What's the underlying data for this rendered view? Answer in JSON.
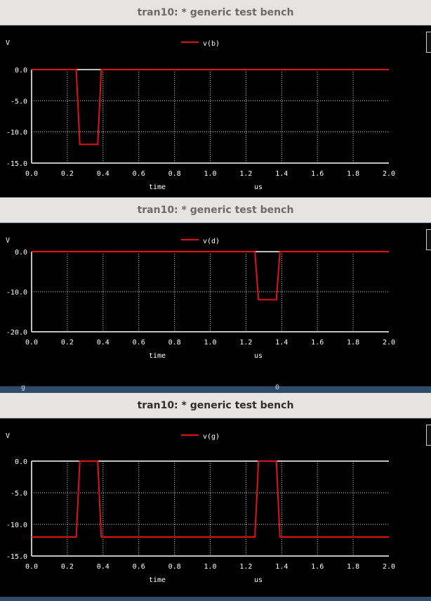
{
  "windows": [
    {
      "title": "tran10: * generic test bench",
      "ylabel": "V",
      "xlabel": "time",
      "xunit": "us"
    },
    {
      "title": "tran10: * generic test bench",
      "ylabel": "V",
      "xlabel": "time",
      "xunit": "us"
    },
    {
      "title": "tran10: * generic test bench",
      "ylabel": "V",
      "xlabel": "time",
      "xunit": "us"
    }
  ],
  "behind_window": {
    "left_text": "g",
    "right_text": "0"
  },
  "colors": {
    "background": "#000000",
    "trace": "#e01414",
    "grid": "#ffffff",
    "axis": "#ffffff"
  },
  "chart_data": [
    {
      "type": "line",
      "title": "tran10: * generic test bench",
      "xlabel": "time",
      "xunit": "us",
      "ylabel": "V",
      "xlim": [
        0.0,
        2.0
      ],
      "ylim": [
        -15.0,
        0.0
      ],
      "xticks": [
        "0.0",
        "0.2",
        "0.4",
        "0.6",
        "0.8",
        "1.0",
        "1.2",
        "1.4",
        "1.6",
        "1.8",
        "2.0"
      ],
      "yticks": [
        {
          "v": 0,
          "label": "0.0"
        },
        {
          "v": -5,
          "label": "-5.0"
        },
        {
          "v": -10,
          "label": "-10.0"
        },
        {
          "v": -15,
          "label": "-15.0"
        }
      ],
      "grid": true,
      "legend": "top-center",
      "series": [
        {
          "name": "v(b)",
          "x": [
            0.0,
            0.25,
            0.26,
            0.27,
            0.37,
            0.38,
            0.39,
            2.0
          ],
          "y": [
            0.0,
            0.0,
            -6.0,
            -12.0,
            -12.0,
            -6.0,
            0.0,
            0.0
          ]
        }
      ]
    },
    {
      "type": "line",
      "title": "tran10: * generic test bench",
      "xlabel": "time",
      "xunit": "us",
      "ylabel": "V",
      "xlim": [
        0.0,
        2.0
      ],
      "ylim": [
        -20.0,
        0.0
      ],
      "xticks": [
        "0.0",
        "0.2",
        "0.4",
        "0.6",
        "0.8",
        "1.0",
        "1.2",
        "1.4",
        "1.6",
        "1.8",
        "2.0"
      ],
      "yticks": [
        {
          "v": 0,
          "label": "0.0"
        },
        {
          "v": -10,
          "label": "-10.0"
        },
        {
          "v": -20,
          "label": "-20.0"
        }
      ],
      "grid": true,
      "legend": "top-center",
      "series": [
        {
          "name": "v(d)",
          "x": [
            0.0,
            1.25,
            1.26,
            1.27,
            1.37,
            1.38,
            1.39,
            2.0
          ],
          "y": [
            0.0,
            0.0,
            -6.0,
            -12.0,
            -12.0,
            -6.0,
            0.0,
            0.0
          ]
        }
      ]
    },
    {
      "type": "line",
      "title": "tran10: * generic test bench",
      "xlabel": "time",
      "xunit": "us",
      "ylabel": "V",
      "xlim": [
        0.0,
        2.0
      ],
      "ylim": [
        -15.0,
        0.0
      ],
      "xticks": [
        "0.0",
        "0.2",
        "0.4",
        "0.6",
        "0.8",
        "1.0",
        "1.2",
        "1.4",
        "1.6",
        "1.8",
        "2.0"
      ],
      "yticks": [
        {
          "v": 0,
          "label": "0.0"
        },
        {
          "v": -5,
          "label": "-5.0"
        },
        {
          "v": -10,
          "label": "-10.0"
        },
        {
          "v": -15,
          "label": "-15.0"
        }
      ],
      "grid": true,
      "legend": "top-center",
      "series": [
        {
          "name": "v(g)",
          "x": [
            0.0,
            0.25,
            0.26,
            0.27,
            0.37,
            0.38,
            0.39,
            1.25,
            1.26,
            1.27,
            1.37,
            1.38,
            1.39,
            2.0
          ],
          "y": [
            -12.0,
            -12.0,
            -6.0,
            0.0,
            0.0,
            -6.0,
            -12.0,
            -12.0,
            -6.0,
            0.0,
            0.0,
            -6.0,
            -12.0,
            -12.0
          ]
        }
      ]
    }
  ]
}
